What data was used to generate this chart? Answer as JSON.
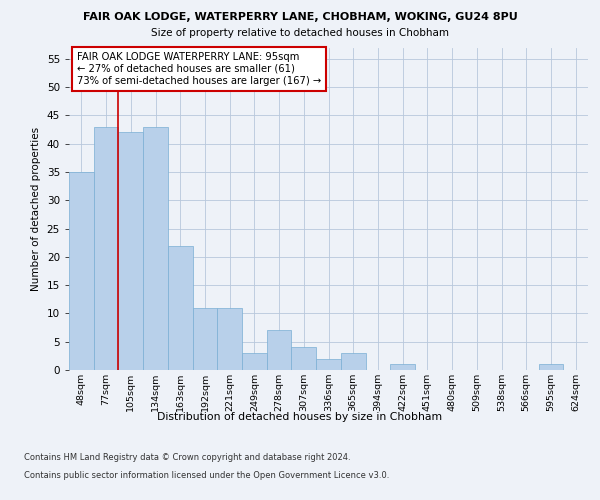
{
  "title1": "FAIR OAK LODGE, WATERPERRY LANE, CHOBHAM, WOKING, GU24 8PU",
  "title2": "Size of property relative to detached houses in Chobham",
  "xlabel": "Distribution of detached houses by size in Chobham",
  "ylabel": "Number of detached properties",
  "categories": [
    "48sqm",
    "77sqm",
    "105sqm",
    "134sqm",
    "163sqm",
    "192sqm",
    "221sqm",
    "249sqm",
    "278sqm",
    "307sqm",
    "336sqm",
    "365sqm",
    "394sqm",
    "422sqm",
    "451sqm",
    "480sqm",
    "509sqm",
    "538sqm",
    "566sqm",
    "595sqm",
    "624sqm"
  ],
  "values": [
    35,
    43,
    42,
    43,
    22,
    11,
    11,
    3,
    7,
    4,
    2,
    3,
    0,
    1,
    0,
    0,
    0,
    0,
    0,
    1,
    0
  ],
  "bar_color": "#b8d0ea",
  "bar_edge_color": "#7aafd4",
  "vline_color": "#cc0000",
  "annotation_text": "FAIR OAK LODGE WATERPERRY LANE: 95sqm\n← 27% of detached houses are smaller (61)\n73% of semi-detached houses are larger (167) →",
  "annotation_box_color": "#ffffff",
  "annotation_box_edge": "#cc0000",
  "ylim": [
    0,
    57
  ],
  "yticks": [
    0,
    5,
    10,
    15,
    20,
    25,
    30,
    35,
    40,
    45,
    50,
    55
  ],
  "footer1": "Contains HM Land Registry data © Crown copyright and database right 2024.",
  "footer2": "Contains public sector information licensed under the Open Government Licence v3.0.",
  "bg_color": "#eef2f8",
  "plot_bg_color": "#eef2f8"
}
